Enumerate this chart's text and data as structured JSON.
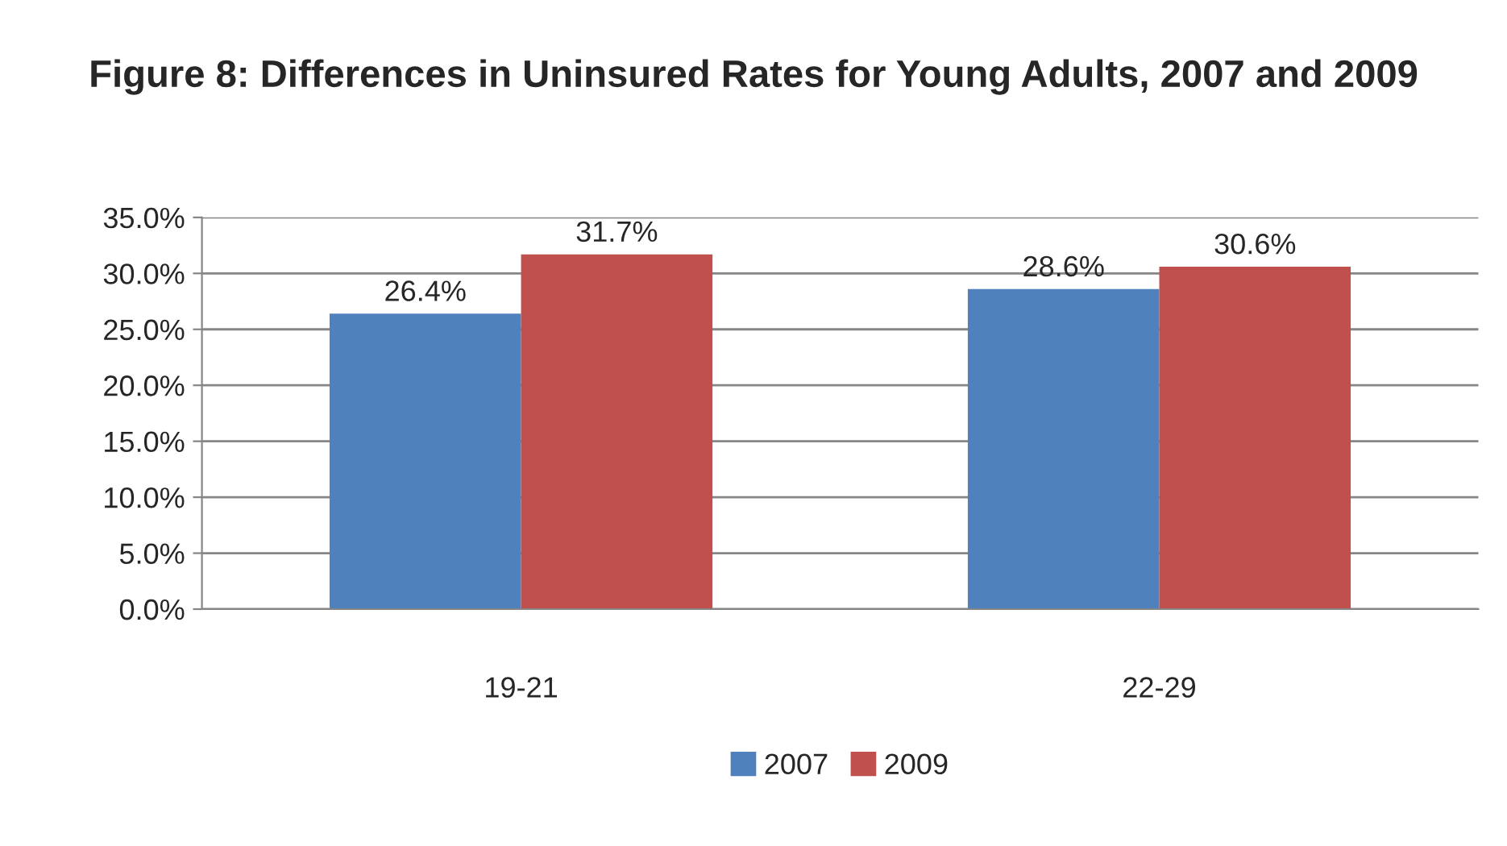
{
  "chart_data": {
    "type": "bar",
    "title": "Figure 8: Differences in Uninsured Rates for Young Adults, 2007 and 2009",
    "categories": [
      "19-21",
      "22-29"
    ],
    "series": [
      {
        "name": "2007",
        "color": "#4f81bd",
        "values": [
          26.4,
          28.6
        ],
        "value_labels": [
          "26.4%",
          "28.6%"
        ]
      },
      {
        "name": "2009",
        "color": "#c0504d",
        "values": [
          31.7,
          30.6
        ],
        "value_labels": [
          "31.7%",
          "30.6%"
        ]
      }
    ],
    "ylim": [
      0,
      35
    ],
    "yticks": [
      {
        "value": 0,
        "label": "0.0%"
      },
      {
        "value": 5,
        "label": "5.0%"
      },
      {
        "value": 10,
        "label": "10.0%"
      },
      {
        "value": 15,
        "label": "15.0%"
      },
      {
        "value": 20,
        "label": "20.0%"
      },
      {
        "value": 25,
        "label": "25.0%"
      },
      {
        "value": 30,
        "label": "30.0%"
      },
      {
        "value": 35,
        "label": "35.0%"
      }
    ],
    "grid": "y",
    "legend": "bottom"
  }
}
